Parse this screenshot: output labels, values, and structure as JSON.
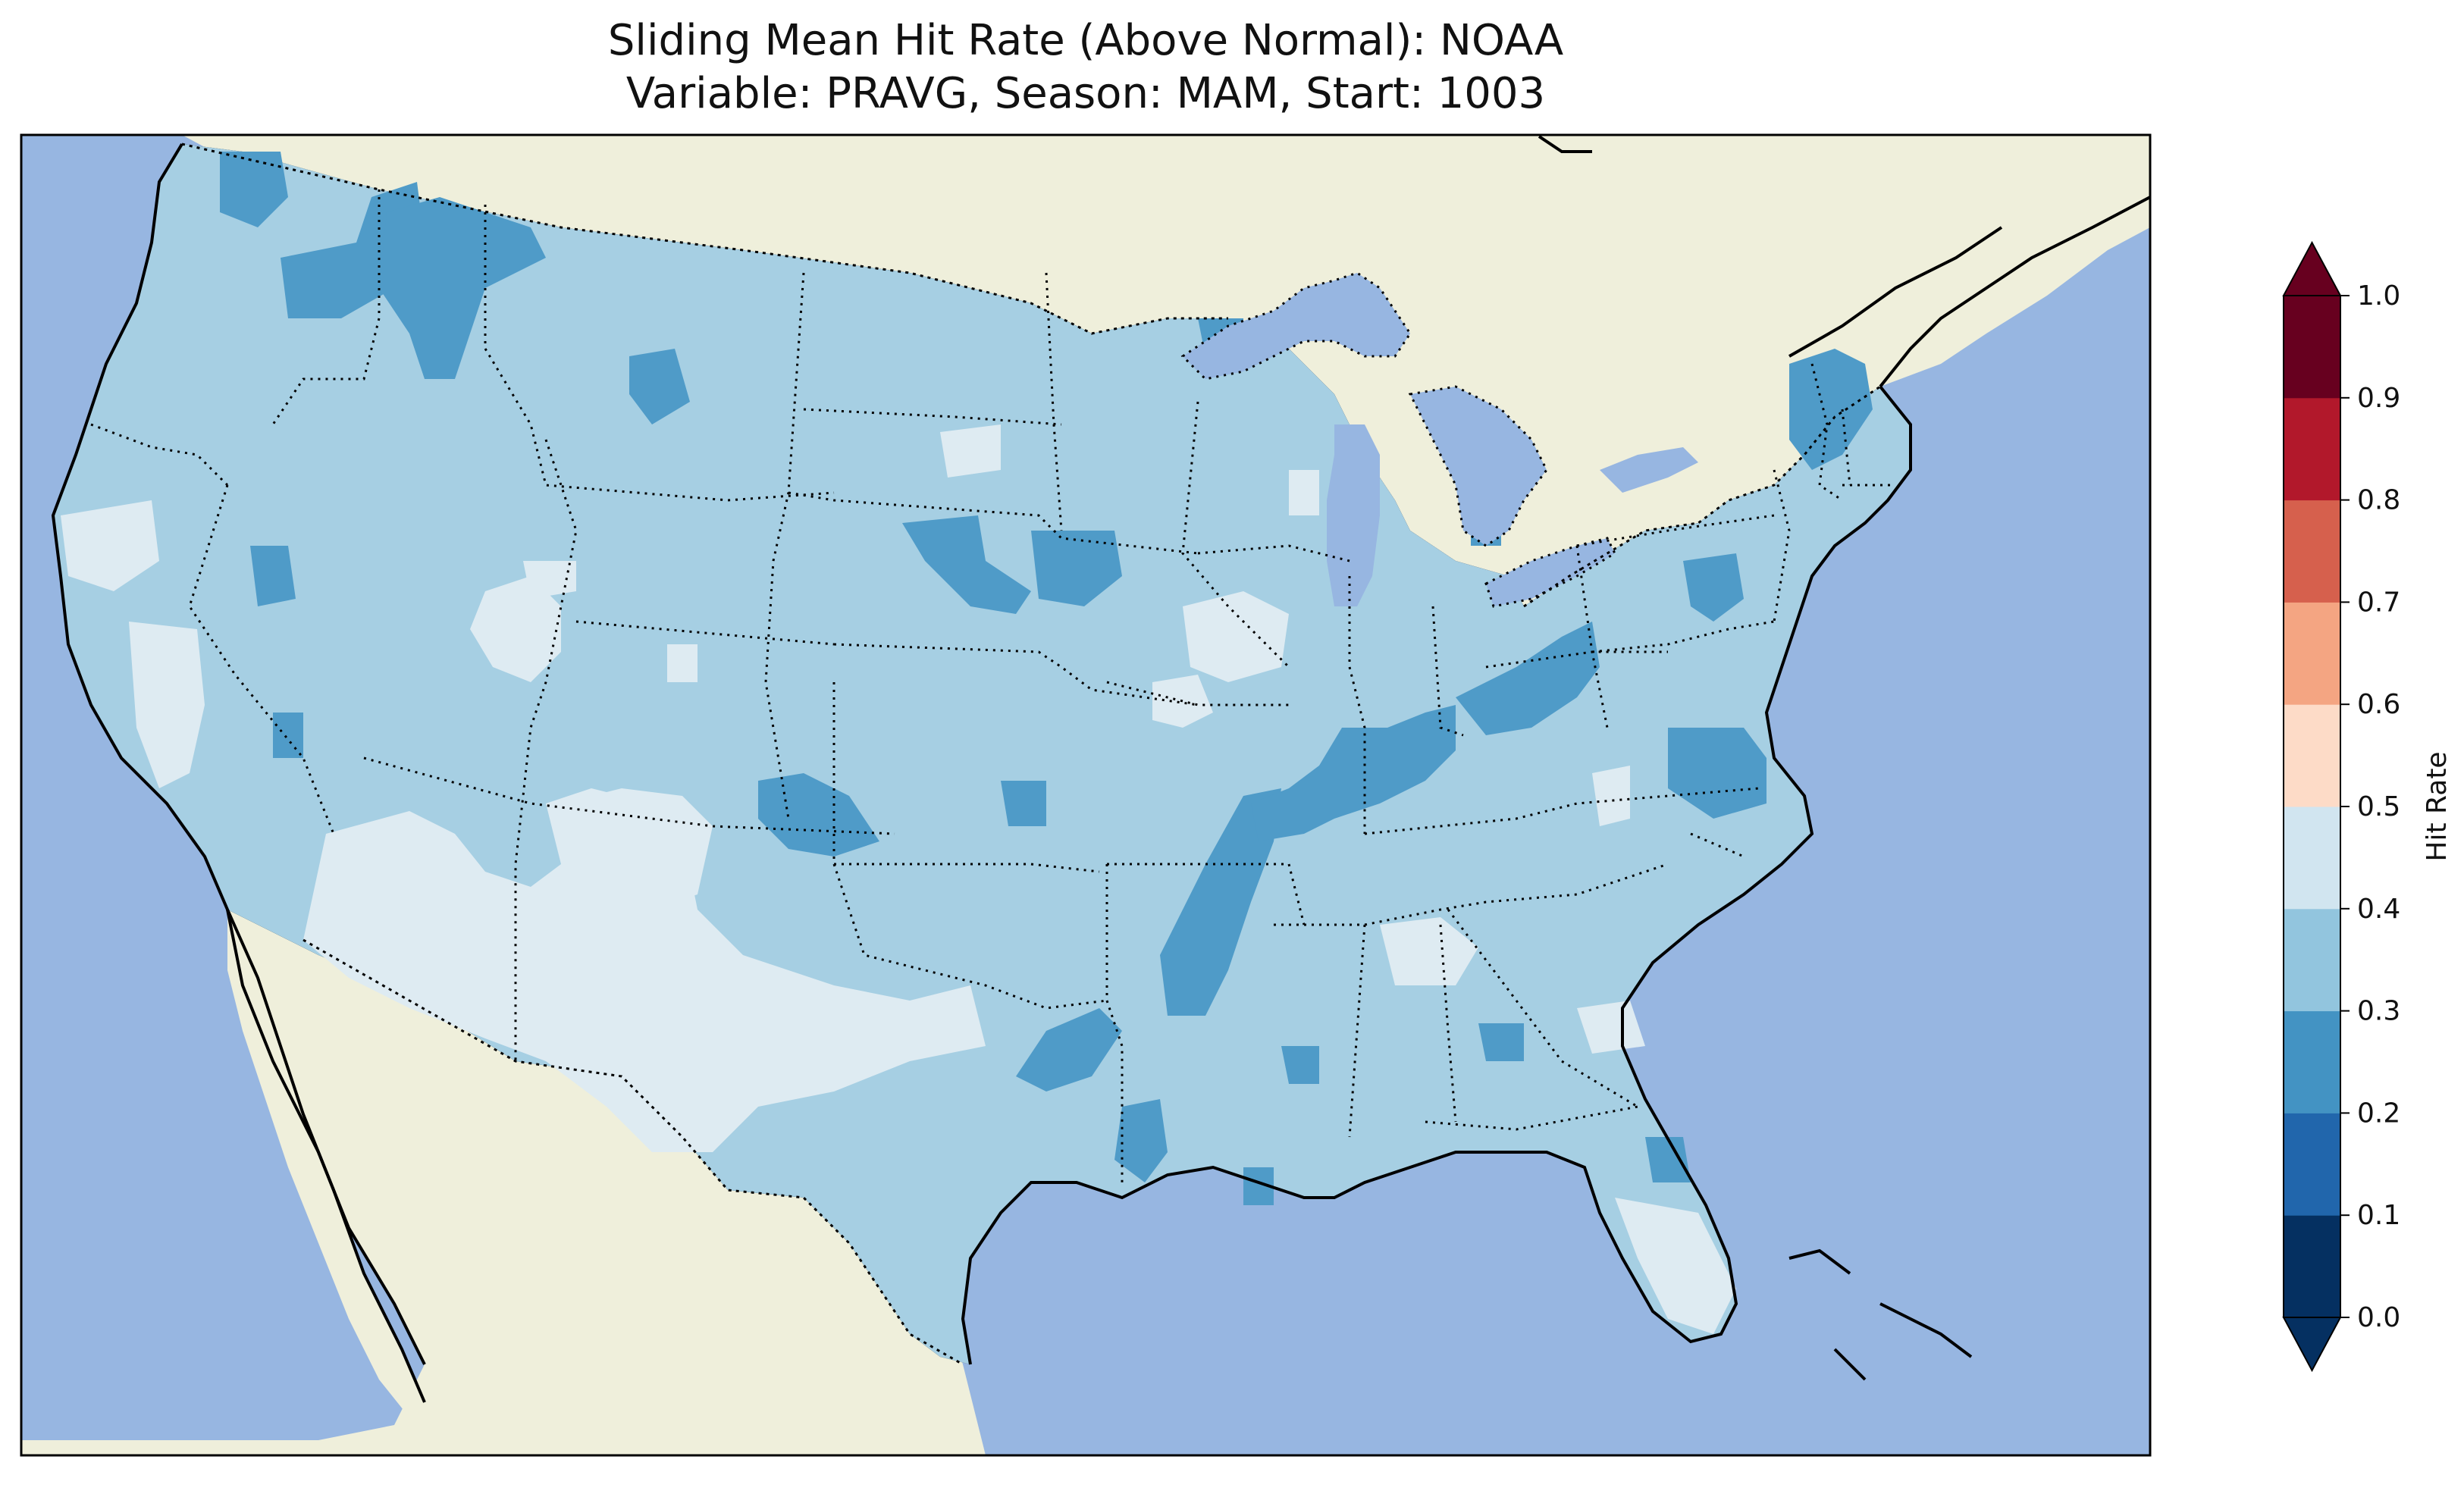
{
  "title_line1": "Sliding Mean Hit Rate (Above Normal): NOAA",
  "title_line2": "Variable: PRAVG, Season: MAM, Start: 1003",
  "colorbar": {
    "label": "Hit Rate",
    "ticks": [
      "0.0",
      "0.1",
      "0.2",
      "0.3",
      "0.4",
      "0.5",
      "0.6",
      "0.7",
      "0.8",
      "0.9",
      "1.0"
    ],
    "colors": [
      "#053061",
      "#2166ac",
      "#4393c3",
      "#92c5de",
      "#d1e5f0",
      "#fddbc7",
      "#f4a582",
      "#d6604d",
      "#b2182b",
      "#67001f"
    ],
    "extend": "both"
  },
  "map_colors": {
    "ocean": "#97b6e1",
    "land": "#efefdb",
    "lake": "#97b6e1",
    "class_0.2_0.3": "#4f9bc8",
    "class_0.3_0.4": "#a6cfe3",
    "class_0.4_0.5": "#deebf2"
  }
}
